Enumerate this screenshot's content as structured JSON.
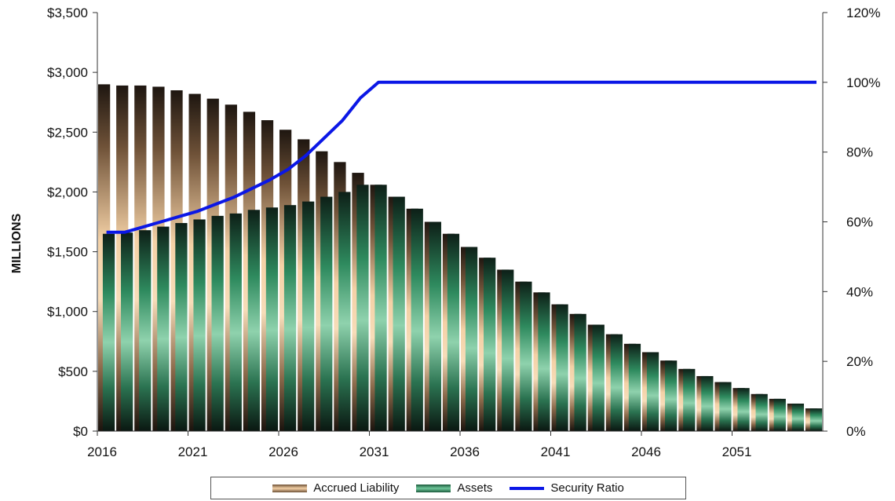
{
  "chart_data": {
    "type": "bar",
    "title": "",
    "xlabel": "",
    "ylabel": "MILLIONS",
    "x": [
      2016,
      2017,
      2018,
      2019,
      2020,
      2021,
      2022,
      2023,
      2024,
      2025,
      2026,
      2027,
      2028,
      2029,
      2030,
      2031,
      2032,
      2033,
      2034,
      2035,
      2036,
      2037,
      2038,
      2039,
      2040,
      2041,
      2042,
      2043,
      2044,
      2045,
      2046,
      2047,
      2048,
      2049,
      2050,
      2051,
      2052,
      2053,
      2054,
      2055
    ],
    "x_tick_labels": [
      "2016",
      "2021",
      "2026",
      "2031",
      "2036",
      "2041",
      "2046",
      "2051"
    ],
    "ylim": [
      0,
      3500
    ],
    "y_tick_labels": [
      "$0",
      "$500",
      "$1,000",
      "$1,500",
      "$2,000",
      "$2,500",
      "$3,000",
      "$3,500"
    ],
    "y2lim": [
      0,
      120
    ],
    "y2_tick_labels": [
      "0%",
      "20%",
      "40%",
      "60%",
      "80%",
      "100%",
      "120%"
    ],
    "grid": false,
    "legend_position": "bottom",
    "series": [
      {
        "name": "Accrued Liability",
        "kind": "bar",
        "axis": "left",
        "color": "#e8c8a0",
        "values": [
          2900,
          2890,
          2890,
          2880,
          2850,
          2820,
          2780,
          2730,
          2670,
          2600,
          2520,
          2440,
          2340,
          2250,
          2160,
          2060,
          1960,
          1860,
          1750,
          1650,
          1540,
          1450,
          1350,
          1250,
          1160,
          1060,
          980,
          890,
          810,
          730,
          660,
          590,
          520,
          460,
          410,
          360,
          310,
          270,
          230,
          190
        ]
      },
      {
        "name": "Assets",
        "kind": "bar",
        "axis": "left",
        "color": "#2e8a5e",
        "values": [
          1650,
          1660,
          1680,
          1710,
          1740,
          1770,
          1800,
          1820,
          1850,
          1870,
          1890,
          1920,
          1960,
          2000,
          2060,
          2060,
          1960,
          1860,
          1750,
          1650,
          1540,
          1450,
          1350,
          1250,
          1160,
          1060,
          980,
          890,
          810,
          730,
          660,
          590,
          520,
          460,
          410,
          360,
          310,
          270,
          230,
          190
        ]
      },
      {
        "name": "Security Ratio",
        "kind": "line",
        "axis": "right",
        "color": "#0b17e6",
        "values": [
          57,
          57,
          58.5,
          60,
          61.5,
          63,
          65,
          67,
          69.5,
          72,
          75,
          79,
          84,
          89,
          95.5,
          100,
          100,
          100,
          100,
          100,
          100,
          100,
          100,
          100,
          100,
          100,
          100,
          100,
          100,
          100,
          100,
          100,
          100,
          100,
          100,
          100,
          100,
          100,
          100,
          100
        ]
      }
    ]
  }
}
